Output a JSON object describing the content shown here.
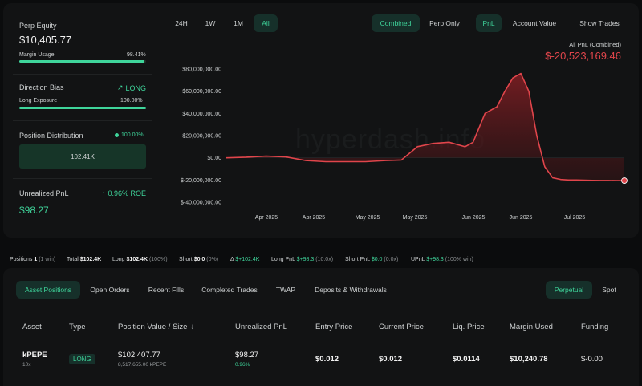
{
  "perp_equity": {
    "label": "Perp Equity",
    "value": "$10,405.77",
    "margin_label": "Margin Usage",
    "margin_value": "98.41%",
    "margin_fraction": 0.9841
  },
  "direction": {
    "label": "Direction Bias",
    "value": "LONG",
    "exposure_label": "Long Exposure",
    "exposure_value": "100.00%",
    "exposure_fraction": 1.0
  },
  "distribution": {
    "label": "Position Distribution",
    "value": "100.00%",
    "bar_value": "102.41K"
  },
  "unrealized": {
    "label": "Unrealized PnL",
    "roe": "0.96% ROE",
    "value": "$98.27"
  },
  "range_buttons": [
    "24H",
    "1W",
    "1M",
    "All"
  ],
  "range_active": "All",
  "view_buttons": [
    "Combined",
    "Perp Only"
  ],
  "metric_buttons": [
    "PnL",
    "Account Value"
  ],
  "show_trades": "Show Trades",
  "pnl_header": {
    "label": "All PnL (Combined)",
    "value": "$-20,523,169.46"
  },
  "watermark": "hyperdash.info",
  "chart_data": {
    "type": "area",
    "y_ticks": [
      "$80,000,000.00",
      "$60,000,000.00",
      "$40,000,000.00",
      "$20,000,000.00",
      "$0.00",
      "$-20,000,000.00",
      "$-40,000,000.00"
    ],
    "ylim": [
      -40000000,
      80000000
    ],
    "x_ticks": [
      "Apr 2025",
      "Apr 2025",
      "May 2025",
      "May 2025",
      "Jun 2025",
      "Jun 2025",
      "Jul 2025"
    ],
    "x": [
      0,
      5,
      10,
      15,
      20,
      25,
      30,
      35,
      40,
      44,
      48,
      52,
      56,
      60,
      62,
      65,
      68,
      70,
      72,
      74,
      76,
      78,
      80,
      82,
      84,
      86,
      88,
      90,
      92,
      94,
      96,
      98,
      100
    ],
    "values": [
      0,
      500000,
      1500000,
      800000,
      -2500000,
      -3500000,
      -3500000,
      -3500000,
      -2500000,
      -2000000,
      10000000,
      13000000,
      14000000,
      10000000,
      14000000,
      40000000,
      46000000,
      60000000,
      72000000,
      76000000,
      60000000,
      20000000,
      -8000000,
      -18000000,
      -19500000,
      -20000000,
      -20000000,
      -20200000,
      -20300000,
      -20400000,
      -20450000,
      -20500000,
      -20523169
    ],
    "line_color": "#e0454b",
    "fill_color": "#5a1a1d"
  },
  "stats": {
    "positions_label": "Positions",
    "positions_value": "1",
    "positions_note": "(1 win)",
    "total_label": "Total",
    "total_value": "$102.4K",
    "long_label": "Long",
    "long_value": "$102.4K",
    "long_note": "(100%)",
    "short_label": "Short",
    "short_value": "$0.0",
    "short_note": "(0%)",
    "delta_label": "Δ",
    "delta_value": "$+102.4K",
    "longpnl_label": "Long PnL",
    "longpnl_value": "$+98.3",
    "longpnl_note": "(10.0x)",
    "shortpnl_label": "Short PnL",
    "shortpnl_value": "$0.0",
    "shortpnl_note": "(0.0x)",
    "upnl_label": "UPnL",
    "upnl_value": "$+98.3",
    "upnl_note": "(100% win)"
  },
  "tabs": [
    "Asset Positions",
    "Open Orders",
    "Recent Fills",
    "Completed Trades",
    "TWAP",
    "Deposits & Withdrawals"
  ],
  "market_tabs": [
    "Perpetual",
    "Spot"
  ],
  "table": {
    "headers": [
      "Asset",
      "Type",
      "Position Value / Size",
      "Unrealized PnL",
      "Entry Price",
      "Current Price",
      "Liq. Price",
      "Margin Used",
      "Funding"
    ],
    "sort_arrow": "↓",
    "row": {
      "asset": "kPEPE",
      "leverage": "10x",
      "type": "LONG",
      "value": "$102,407.77",
      "size": "8,517,655.00 kPEPE",
      "upnl": "$98.27",
      "upnl_pct": "0.96%",
      "entry": "$0.012",
      "current": "$0.012",
      "liq": "$0.0114",
      "margin": "$10,240.78",
      "funding": "$-0.00"
    }
  },
  "colors": {
    "accent": "#3fd59b",
    "negative": "#e0454b"
  }
}
